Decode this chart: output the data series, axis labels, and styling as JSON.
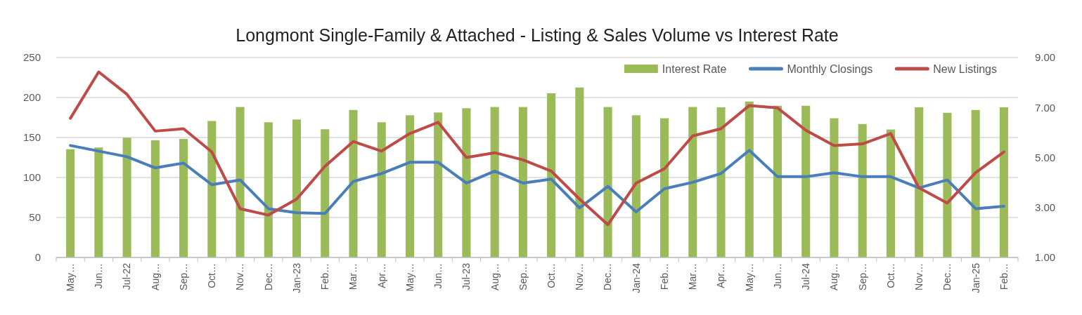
{
  "chart_data": {
    "type": "bar",
    "title": "Longmont Single-Family & Attached - Listing & Sales Volume vs Interest Rate",
    "categories": [
      "May…",
      "Jun…",
      "Jul-22",
      "Aug…",
      "Sep…",
      "Oct…",
      "Nov…",
      "Dec…",
      "Jan-23",
      "Feb…",
      "Mar…",
      "Apr…",
      "May…",
      "Jun…",
      "Jul-23",
      "Aug…",
      "Sep…",
      "Oct…",
      "Nov…",
      "Dec…",
      "Jan-24",
      "Feb…",
      "Mar…",
      "Apr…",
      "May…",
      "Jun…",
      "Jul-24",
      "Aug…",
      "Sep…",
      "Oct…",
      "Nov…",
      "Dec…",
      "Jan-25",
      "Feb…"
    ],
    "series": [
      {
        "name": "Interest Rate",
        "axis": "y2",
        "color": "#9bbb59",
        "values": [
          5.33,
          5.4,
          5.79,
          5.69,
          5.74,
          6.46,
          7.02,
          6.41,
          6.52,
          6.13,
          6.9,
          6.41,
          6.69,
          6.8,
          6.97,
          7.02,
          7.02,
          7.57,
          7.8,
          7.02,
          6.69,
          6.57,
          7.02,
          7.01,
          7.24,
          7.07,
          7.07,
          6.57,
          6.34,
          6.12,
          7.01,
          6.79,
          6.9,
          7.01
        ]
      },
      {
        "name": "Monthly Closings",
        "type": "line",
        "color": "#4a7ebb",
        "values": [
          140,
          133,
          126,
          112,
          118,
          91,
          97,
          61,
          56,
          55,
          95,
          105,
          119,
          119,
          93,
          108,
          93,
          98,
          62,
          89,
          57,
          86,
          94,
          105,
          134,
          101,
          101,
          106,
          101,
          101,
          87,
          97,
          61,
          64
        ]
      },
      {
        "name": "New Listings",
        "type": "line",
        "color": "#be4b48",
        "values": [
          174,
          232,
          204,
          158,
          161,
          132,
          61,
          53,
          73,
          114,
          145,
          133,
          155,
          169,
          125,
          131,
          122,
          108,
          73,
          41,
          93,
          111,
          152,
          161,
          190,
          187,
          159,
          140,
          142,
          155,
          87,
          68,
          106,
          132
        ]
      }
    ],
    "ylim": [
      0,
      250
    ],
    "yticks": [
      0,
      50,
      100,
      150,
      200,
      250
    ],
    "y2lim": [
      1,
      9
    ],
    "y2ticks": [
      {
        "value": 1,
        "label": "1.00"
      },
      {
        "value": 3,
        "label": "3.00"
      },
      {
        "value": 5,
        "label": "5.00"
      },
      {
        "value": 7,
        "label": "7.00"
      },
      {
        "value": 9,
        "label": "9.00"
      }
    ],
    "grid": "y",
    "legend": "top right",
    "line_style": "solid"
  }
}
